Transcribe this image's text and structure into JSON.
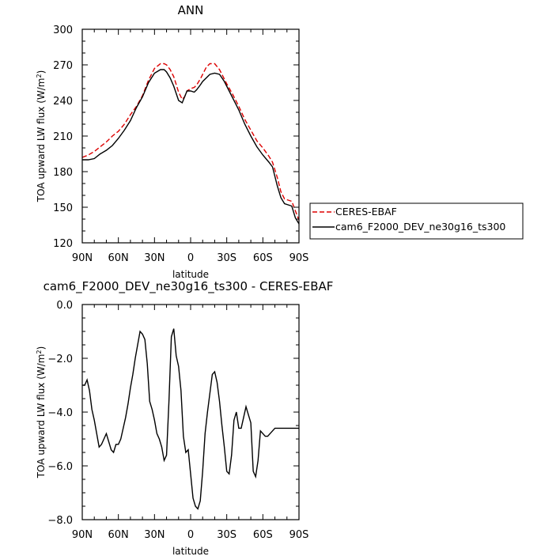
{
  "chart_data": [
    {
      "type": "line",
      "title": "ANN",
      "xlabel": "latitude",
      "ylabel": "TOA upward LW flux (W/m²)",
      "xlim": [
        90,
        -90
      ],
      "ylim": [
        120,
        300
      ],
      "x_ticks": [
        {
          "value": 90,
          "label": "90N"
        },
        {
          "value": 60,
          "label": "60N"
        },
        {
          "value": 30,
          "label": "30N"
        },
        {
          "value": 0,
          "label": "0"
        },
        {
          "value": -30,
          "label": "30S"
        },
        {
          "value": -60,
          "label": "60S"
        },
        {
          "value": -90,
          "label": "90S"
        }
      ],
      "y_ticks": [
        120,
        150,
        180,
        210,
        240,
        270,
        300
      ],
      "legend_position": "right",
      "series": [
        {
          "name": "CERES-EBAF",
          "color": "#dd0000",
          "dash": "dashed",
          "x": [
            90,
            85,
            80,
            75,
            70,
            65,
            60,
            55,
            50,
            45,
            40,
            35,
            30,
            25,
            22,
            20,
            17,
            14,
            10,
            7,
            5,
            3,
            0,
            -3,
            -5,
            -8,
            -10,
            -13,
            -16,
            -20,
            -24,
            -28,
            -30,
            -35,
            -40,
            -45,
            -50,
            -55,
            -60,
            -65,
            -68,
            -72,
            -75,
            -78,
            -81,
            -84,
            -87,
            -90
          ],
          "y": [
            192,
            194,
            197,
            201,
            205,
            210,
            214,
            220,
            228,
            235,
            244,
            257,
            267,
            271,
            271,
            270,
            266,
            260,
            247,
            241,
            243,
            248,
            250,
            251,
            253,
            258,
            262,
            268,
            271,
            271,
            266,
            258,
            254,
            245,
            235,
            224,
            215,
            206,
            200,
            193,
            188,
            175,
            163,
            157,
            156,
            155,
            147,
            139
          ]
        },
        {
          "name": "cam6_F2000_DEV_ne30g16_ts300",
          "color": "#000000",
          "dash": "solid",
          "x": [
            90,
            85,
            80,
            75,
            70,
            65,
            60,
            55,
            50,
            45,
            40,
            35,
            30,
            25,
            22,
            20,
            17,
            14,
            10,
            7,
            5,
            3,
            0,
            -3,
            -5,
            -8,
            -10,
            -13,
            -16,
            -20,
            -24,
            -28,
            -30,
            -35,
            -40,
            -45,
            -50,
            -55,
            -60,
            -65,
            -68,
            -72,
            -75,
            -78,
            -81,
            -84,
            -87,
            -90
          ],
          "y": [
            190,
            190,
            191,
            195,
            198,
            202,
            208,
            215,
            223,
            234,
            243,
            255,
            263,
            266,
            266,
            264,
            259,
            252,
            240,
            238,
            243,
            248,
            248,
            247,
            249,
            253,
            256,
            259,
            262,
            263,
            262,
            256,
            252,
            242,
            232,
            220,
            210,
            201,
            194,
            188,
            184,
            168,
            158,
            153,
            152,
            151,
            141,
            136
          ]
        }
      ]
    },
    {
      "type": "line",
      "title": "cam6_F2000_DEV_ne30g16_ts300 - CERES-EBAF",
      "xlabel": "latitude",
      "ylabel": "TOA upward LW flux (W/m²)",
      "xlim": [
        90,
        -90
      ],
      "ylim": [
        -8.0,
        0.0
      ],
      "x_ticks": [
        {
          "value": 90,
          "label": "90N"
        },
        {
          "value": 60,
          "label": "60N"
        },
        {
          "value": 30,
          "label": "30N"
        },
        {
          "value": 0,
          "label": "0"
        },
        {
          "value": -30,
          "label": "30S"
        },
        {
          "value": -60,
          "label": "60S"
        },
        {
          "value": -90,
          "label": "90S"
        }
      ],
      "y_ticks": [
        {
          "value": -8,
          "label": "−8.0"
        },
        {
          "value": -6,
          "label": "−6.0"
        },
        {
          "value": -4,
          "label": "−4.0"
        },
        {
          "value": -2,
          "label": "−2.0"
        },
        {
          "value": 0,
          "label": "0.0"
        }
      ],
      "series": [
        {
          "name": "",
          "color": "#000000",
          "dash": "solid",
          "x": [
            90,
            88,
            86,
            84,
            82,
            80,
            78,
            76,
            74,
            72,
            70,
            68,
            66,
            64,
            62,
            60,
            58,
            56,
            54,
            52,
            50,
            48,
            46,
            44,
            42,
            40,
            38,
            36,
            34,
            32,
            30,
            28,
            26,
            24,
            22,
            20,
            18,
            16,
            14,
            12,
            10,
            8,
            6,
            4,
            2,
            0,
            -2,
            -4,
            -6,
            -8,
            -10,
            -12,
            -14,
            -16,
            -18,
            -20,
            -22,
            -24,
            -26,
            -28,
            -30,
            -32,
            -34,
            -36,
            -38,
            -40,
            -42,
            -44,
            -46,
            -48,
            -50,
            -52,
            -54,
            -56,
            -58,
            -60,
            -62,
            -64,
            -66,
            -68,
            -70,
            -72,
            -74,
            -76,
            -78,
            -80,
            -82,
            -84,
            -86,
            -88,
            -90
          ],
          "y": [
            -3.0,
            -3.0,
            -2.8,
            -3.2,
            -3.9,
            -4.3,
            -4.8,
            -5.3,
            -5.2,
            -5.0,
            -4.8,
            -5.1,
            -5.4,
            -5.5,
            -5.2,
            -5.2,
            -5.0,
            -4.6,
            -4.2,
            -3.7,
            -3.1,
            -2.6,
            -2.0,
            -1.5,
            -1.0,
            -1.1,
            -1.3,
            -2.2,
            -3.6,
            -3.9,
            -4.3,
            -4.8,
            -5.0,
            -5.3,
            -5.8,
            -5.6,
            -3.6,
            -1.2,
            -0.9,
            -1.9,
            -2.3,
            -3.2,
            -4.9,
            -5.5,
            -5.4,
            -6.3,
            -7.2,
            -7.5,
            -7.6,
            -7.3,
            -6.2,
            -4.8,
            -4.0,
            -3.3,
            -2.6,
            -2.5,
            -2.9,
            -3.6,
            -4.5,
            -5.3,
            -6.2,
            -6.3,
            -5.6,
            -4.3,
            -4.0,
            -4.6,
            -4.6,
            -4.2,
            -3.8,
            -4.1,
            -4.4,
            -6.2,
            -6.4,
            -5.8,
            -4.7,
            -4.8,
            -4.9,
            -4.9,
            -4.8,
            -4.7,
            -4.6,
            -4.6,
            -4.6,
            -4.6,
            -4.6,
            -4.6,
            -4.6,
            -4.6,
            -4.6,
            -4.6,
            -4.6
          ]
        }
      ]
    }
  ]
}
